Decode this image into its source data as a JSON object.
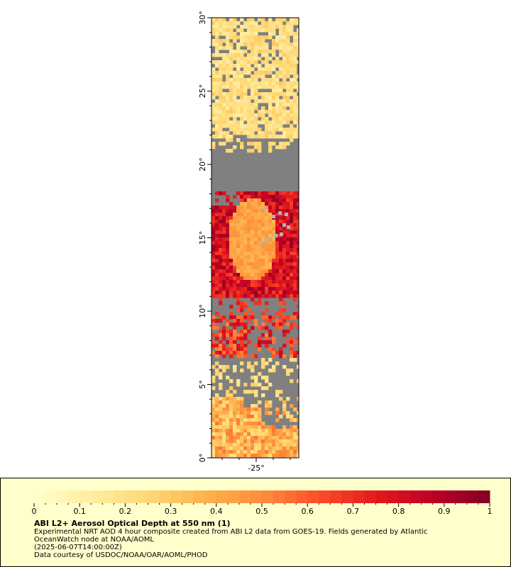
{
  "map": {
    "lat_range": [
      0,
      30
    ],
    "lon_value_center": -25,
    "lat_ticks": [
      "0°",
      "5°",
      "10°",
      "15°",
      "20°",
      "25°",
      "30°"
    ],
    "lon_ticks": [
      "-25°"
    ],
    "missing_color": "#808080",
    "land_color": "#b3b3b3"
  },
  "legend": {
    "title": "ABI L2+ Aerosol Optical Depth at 550 nm (1)",
    "description_line1": "Experimental NRT AOD 4 hour composite created from ABI L2 data from GOES-19. Fields generated by Atlantic",
    "description_line2": "OceanWatch node at NOAA/AOML",
    "timestamp": "(2025-06-07T14:00:00Z)",
    "credit": "Data courtesy of USDOC/NOAA/OAR/AOML/PHOD",
    "range": [
      0,
      1
    ],
    "ticks": [
      "0",
      "0.1",
      "0.2",
      "0.3",
      "0.4",
      "0.5",
      "0.6",
      "0.7",
      "0.8",
      "0.9",
      "1"
    ],
    "colors": [
      "#ffffcc",
      "#ffeda0",
      "#fed976",
      "#feb24c",
      "#fd8d3c",
      "#fc4e2a",
      "#e31a1c",
      "#bd0026",
      "#800026"
    ]
  }
}
